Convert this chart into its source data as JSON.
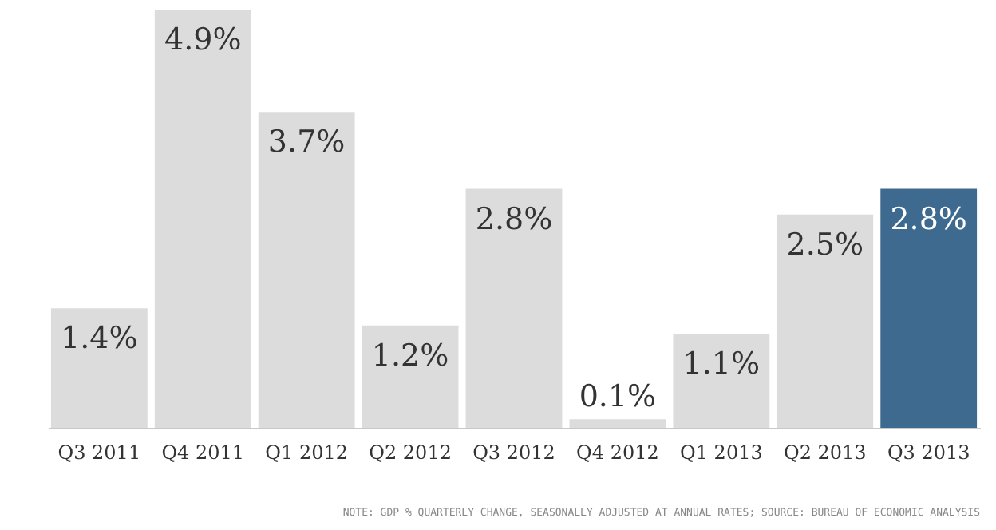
{
  "chart_data": {
    "type": "bar",
    "categories": [
      "Q3 2011",
      "Q4 2011",
      "Q1 2012",
      "Q2 2012",
      "Q3 2012",
      "Q4 2012",
      "Q1 2013",
      "Q2 2013",
      "Q3 2013"
    ],
    "values": [
      1.4,
      4.9,
      3.7,
      1.2,
      2.8,
      0.1,
      1.1,
      2.5,
      2.8
    ],
    "colors": [
      "#dcdcdc",
      "#dcdcdc",
      "#dcdcdc",
      "#dcdcdc",
      "#dcdcdc",
      "#dcdcdc",
      "#dcdcdc",
      "#dcdcdc",
      "#3f6a8f"
    ],
    "value_labels": [
      "1.4%",
      "4.9%",
      "3.7%",
      "1.2%",
      "2.8%",
      "0.1%",
      "1.1%",
      "2.5%",
      "2.8%"
    ],
    "annotations": [
      "NOTE: GDP % QUARTERLY CHANGE, SEASONALLY ADJUSTED AT ANNUAL RATES; SOURCE: BUREAU OF ECONOMIC ANALYSIS"
    ],
    "grid": false
  }
}
